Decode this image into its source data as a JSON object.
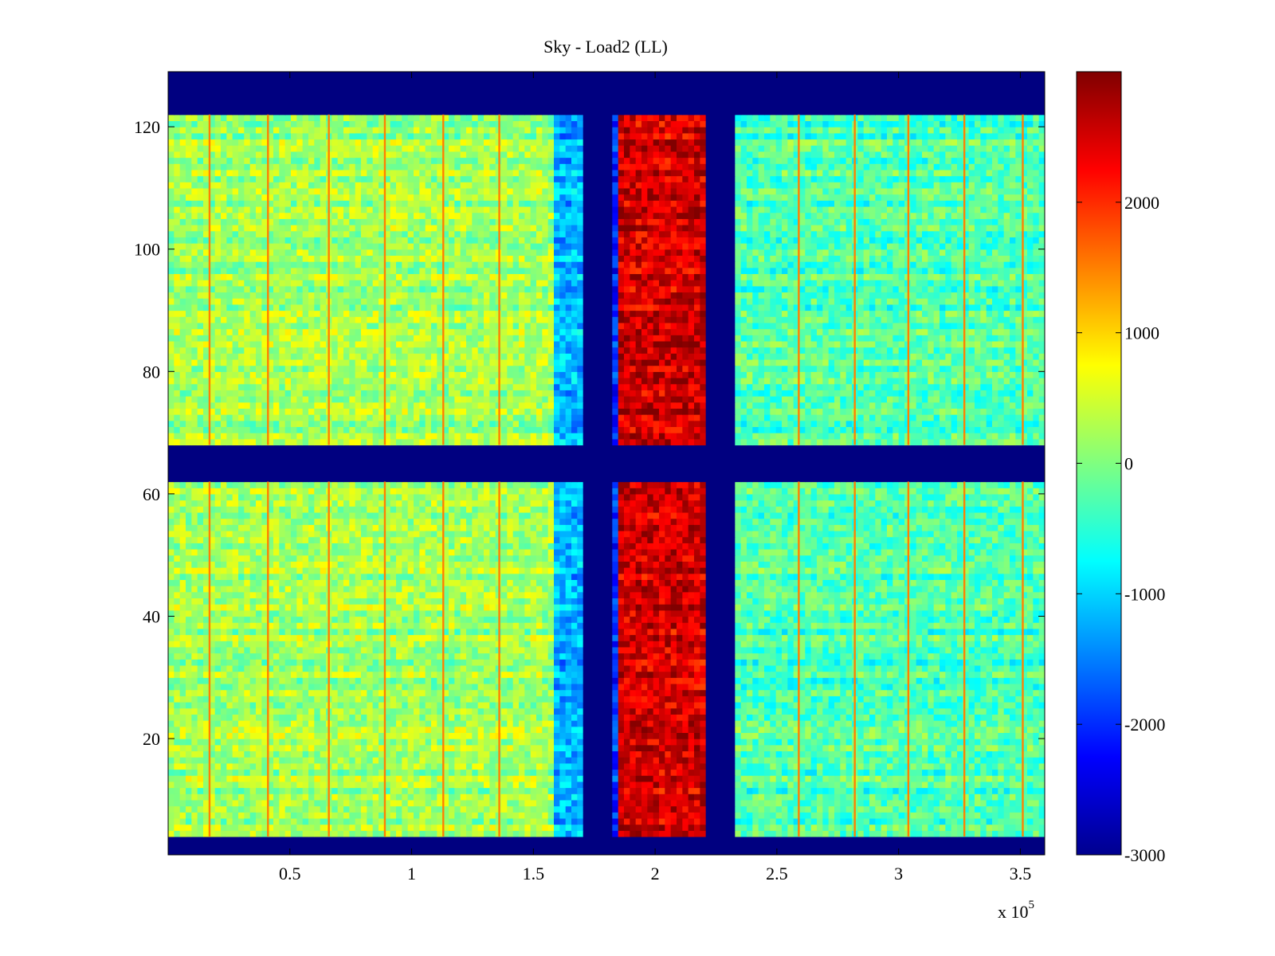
{
  "chart_data": {
    "type": "heatmap",
    "title": "Sky - Load2 (LL)",
    "xlabel": "",
    "ylabel": "",
    "x_multiplier_label": "x 10",
    "x_multiplier_exp": "5",
    "xlim": [
      0,
      3.6
    ],
    "ylim": [
      1,
      129
    ],
    "xticks": [
      0.5,
      1,
      1.5,
      2,
      2.5,
      3,
      3.5
    ],
    "xtick_labels": [
      "0.5",
      "1",
      "1.5",
      "2",
      "2.5",
      "3",
      "3.5"
    ],
    "yticks": [
      20,
      40,
      60,
      80,
      100,
      120
    ],
    "ytick_labels": [
      "20",
      "40",
      "60",
      "80",
      "100",
      "120"
    ],
    "colormap": "jet",
    "colorbar": {
      "range": [
        -3000,
        3000
      ],
      "ticks": [
        -3000,
        -2000,
        -1000,
        0,
        1000,
        2000
      ],
      "tick_labels": [
        "-3000",
        "-2000",
        "-1000",
        "0",
        "1000",
        "2000"
      ]
    },
    "masked_rows": [
      [
        1,
        4
      ],
      [
        62,
        68
      ],
      [
        122,
        129
      ]
    ],
    "masked_columns_x1e5": [
      [
        1.71,
        1.83
      ],
      [
        2.21,
        2.34
      ]
    ],
    "column_bands_x1e5": [
      {
        "x": [
          0,
          1.59
        ],
        "value": 200
      },
      {
        "x": [
          1.59,
          1.71
        ],
        "value": -1200
      },
      {
        "x": [
          1.83,
          1.86
        ],
        "value": -2000
      },
      {
        "x": [
          1.86,
          2.21
        ],
        "value": 2500
      },
      {
        "x": [
          2.34,
          3.6
        ],
        "value": -300
      }
    ],
    "stripe_positions_x1e5": [
      0.17,
      0.41,
      0.66,
      0.89,
      1.13,
      1.36,
      2.59,
      2.82,
      3.04,
      3.27,
      3.51
    ]
  }
}
